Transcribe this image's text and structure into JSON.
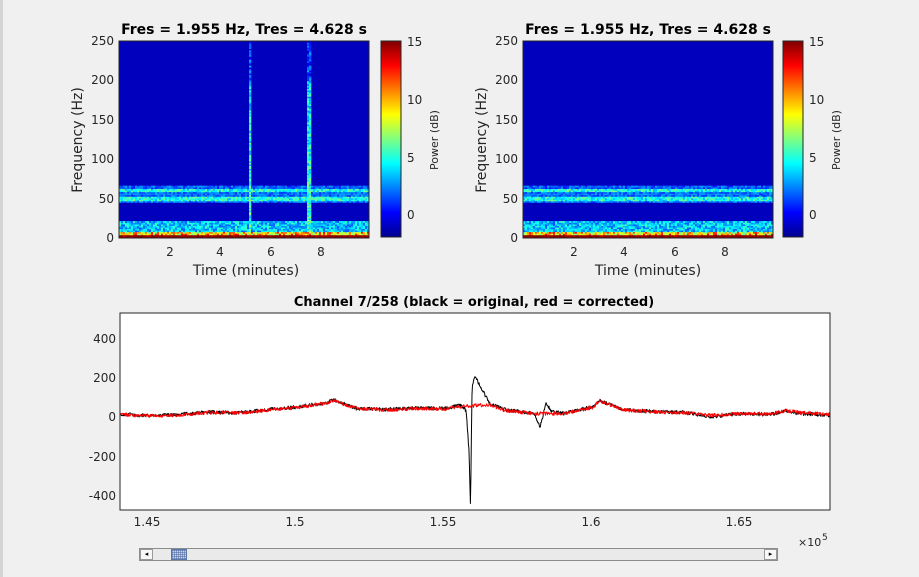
{
  "spectrogram_left": {
    "title": "Fres = 1.955 Hz, Tres = 4.628 s",
    "ylabel": "Frequency (Hz)",
    "xlabel": "Time (minutes)",
    "yticks": [
      "0",
      "50",
      "100",
      "150",
      "200",
      "250"
    ],
    "xticks": [
      "2",
      "4",
      "6",
      "8"
    ],
    "colorbar_label": "Power (dB)",
    "colorbar_ticks": [
      "0",
      "5",
      "10",
      "15"
    ]
  },
  "spectrogram_right": {
    "title": "Fres = 1.955 Hz, Tres = 4.628 s",
    "ylabel": "Frequency (Hz)",
    "xlabel": "Time (minutes)",
    "yticks": [
      "0",
      "50",
      "100",
      "150",
      "200",
      "250"
    ],
    "xticks": [
      "2",
      "4",
      "6",
      "8"
    ],
    "colorbar_label": "Power (dB)",
    "colorbar_ticks": [
      "0",
      "5",
      "10",
      "15"
    ]
  },
  "signal_plot": {
    "title": "Channel 7/258 (black = original, red = corrected)",
    "yticks": [
      "400",
      "200",
      "0",
      "-200",
      "-400"
    ],
    "xticks": [
      "1.45",
      "1.5",
      "1.55",
      "1.6",
      "1.65"
    ],
    "x_exponent_base": "×10",
    "x_exponent_power": "5",
    "colors": {
      "original": "#000000",
      "corrected": "#ff0000"
    }
  },
  "scrollbar": {
    "left_arrow": "◂",
    "right_arrow": "▸",
    "thumb_fraction": 0.03
  },
  "chart_data": [
    {
      "type": "heatmap",
      "title": "Fres = 1.955 Hz, Tres = 4.628 s",
      "xlabel": "Time (minutes)",
      "ylabel": "Frequency (Hz)",
      "xlim": [
        0.1,
        9.85
      ],
      "ylim": [
        0,
        250
      ],
      "xticks": [
        2,
        4,
        6,
        8
      ],
      "yticks": [
        0,
        50,
        100,
        150,
        200,
        250
      ],
      "colormap": "jet",
      "clim": [
        -2,
        15
      ],
      "colorbar_label": "Power (dB)",
      "colorbar_ticks": [
        0,
        5,
        10,
        15
      ],
      "features": {
        "line_noise_bands_hz": [
          50,
          60
        ],
        "broadband_artifacts_minutes": [
          5.2,
          7.5
        ]
      }
    },
    {
      "type": "heatmap",
      "title": "Fres = 1.955 Hz, Tres = 4.628 s",
      "xlabel": "Time (minutes)",
      "ylabel": "Frequency (Hz)",
      "xlim": [
        0.1,
        9.85
      ],
      "ylim": [
        0,
        250
      ],
      "xticks": [
        2,
        4,
        6,
        8
      ],
      "yticks": [
        0,
        50,
        100,
        150,
        200,
        250
      ],
      "colormap": "jet",
      "clim": [
        -2,
        15
      ],
      "colorbar_label": "Power (dB)",
      "colorbar_ticks": [
        0,
        5,
        10,
        15
      ],
      "features": {
        "line_noise_bands_hz": [
          50,
          60
        ],
        "broadband_artifacts_minutes": []
      }
    },
    {
      "type": "line",
      "title": "Channel 7/258 (black = original, red = corrected)",
      "xlim": [
        144000,
        168000
      ],
      "ylim": [
        -470,
        520
      ],
      "xticks": [
        145000,
        150000,
        155000,
        160000,
        165000
      ],
      "yticks": [
        -400,
        -200,
        0,
        200,
        400
      ],
      "grid": false,
      "series": [
        {
          "name": "original",
          "color": "#000000",
          "x": [
            144000,
            145000,
            146000,
            147000,
            148000,
            149000,
            150000,
            151000,
            151200,
            152000,
            153000,
            154000,
            155000,
            155500,
            155700,
            155800,
            155850,
            155900,
            156000,
            156500,
            157000,
            158000,
            158200,
            158400,
            158600,
            159000,
            160000,
            160200,
            161000,
            162000,
            163000,
            164000,
            165000,
            166000,
            166500,
            167000,
            168000
          ],
          "y": [
            12,
            3,
            10,
            22,
            18,
            35,
            48,
            70,
            85,
            40,
            35,
            42,
            40,
            55,
            30,
            -180,
            -470,
            150,
            200,
            65,
            35,
            15,
            -55,
            70,
            25,
            15,
            50,
            80,
            35,
            25,
            20,
            0,
            15,
            10,
            30,
            15,
            5
          ]
        },
        {
          "name": "corrected",
          "color": "#ff0000",
          "x": [
            144000,
            145000,
            146000,
            147000,
            148000,
            149000,
            150000,
            151000,
            151200,
            152000,
            153000,
            154000,
            155000,
            155500,
            156000,
            156500,
            157000,
            158000,
            159000,
            160000,
            160200,
            161000,
            162000,
            163000,
            164000,
            165000,
            166000,
            166500,
            167000,
            168000
          ],
          "y": [
            10,
            2,
            8,
            20,
            17,
            32,
            45,
            68,
            80,
            40,
            33,
            40,
            38,
            50,
            55,
            60,
            30,
            15,
            15,
            45,
            80,
            33,
            24,
            20,
            5,
            15,
            12,
            30,
            20,
            10
          ]
        }
      ]
    }
  ]
}
